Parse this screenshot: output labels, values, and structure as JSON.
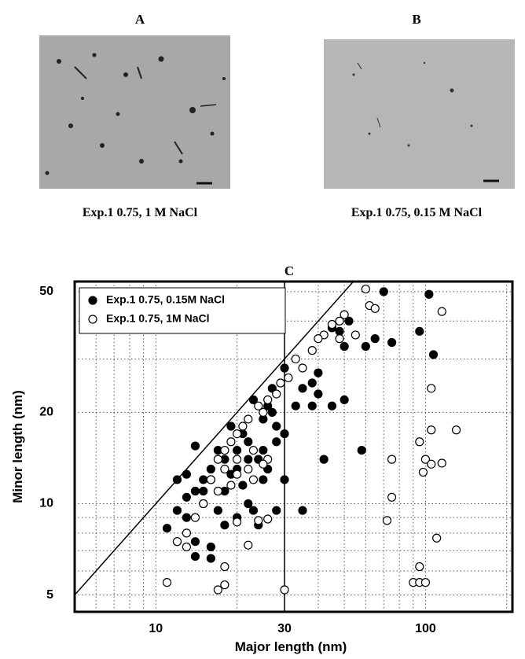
{
  "panels": [
    {
      "label": "A",
      "caption": "Exp.1 0.75, 1 M NaCl"
    },
    {
      "label": "B",
      "caption": "Exp.1 0.75, 0.15 M NaCl"
    }
  ],
  "chart_data": {
    "type": "scatter",
    "title": "C",
    "x_label": "Major length (nm)",
    "y_label": "Minor length (nm)",
    "xlog": true,
    "ylog": true,
    "xlim": [
      5,
      210
    ],
    "ylim": [
      4.4,
      54
    ],
    "xticks": [
      10,
      30,
      100
    ],
    "yticks": [
      5,
      10,
      20,
      50
    ],
    "xgrid": [
      6,
      7,
      8,
      9,
      10,
      20,
      30,
      40,
      50,
      60,
      70,
      80,
      90,
      100,
      200
    ],
    "ygrid": [
      5,
      6,
      7,
      8,
      9,
      10,
      20,
      30,
      40,
      50
    ],
    "grid": true,
    "diagonal": true,
    "vline": 30,
    "legend": "upper left",
    "series": [
      {
        "name": "Exp.1 0.75, 0.15M NaCl",
        "color": "#000000",
        "marker": "filled",
        "x": [
          70,
          103,
          95,
          107,
          75,
          60,
          65,
          50,
          48,
          45,
          52,
          40,
          38,
          35,
          40,
          33,
          45,
          50,
          38,
          30,
          35,
          42,
          58,
          30,
          28,
          27,
          25,
          22,
          20,
          18,
          16,
          15,
          14,
          13,
          12,
          12,
          11,
          13,
          15,
          17,
          16,
          14,
          12,
          14,
          16,
          22,
          24,
          28,
          26,
          24,
          21,
          23,
          27,
          26,
          19,
          17,
          20,
          15,
          18,
          14,
          21,
          25,
          20,
          23,
          18,
          13,
          16,
          19,
          22,
          25,
          28,
          30
        ],
        "values": [
          50,
          49,
          37,
          31,
          34,
          33,
          35,
          33,
          37,
          38,
          40,
          27,
          25,
          24,
          23,
          21,
          21,
          22,
          21,
          12,
          9.5,
          14,
          15,
          17,
          16,
          20,
          19,
          16,
          15,
          14,
          13,
          12,
          11,
          12.5,
          12,
          9.5,
          8.3,
          9,
          10,
          9.5,
          7.2,
          7.5,
          7.5,
          6.7,
          6.6,
          10,
          8.5,
          9.5,
          13,
          14,
          17,
          22,
          24,
          21,
          18,
          15,
          13,
          11,
          11,
          15.5,
          11.5,
          12,
          9,
          9.5,
          8.5,
          10.5,
          12,
          12.5,
          14,
          15,
          18,
          28
        ]
      },
      {
        "name": "Exp.1 0.75, 1M NaCl",
        "color": "#000000",
        "marker": "open",
        "x": [
          60,
          62,
          65,
          115,
          50,
          48,
          45,
          42,
          40,
          48,
          55,
          38,
          33,
          35,
          31,
          29,
          28,
          26,
          25,
          24,
          22,
          21,
          20,
          19,
          18,
          17,
          16,
          17,
          18,
          19,
          20,
          22,
          23,
          26,
          25,
          23,
          20,
          15,
          14,
          13,
          12,
          13,
          20,
          22,
          24,
          26,
          18,
          17,
          18,
          11,
          30,
          75,
          75,
          72,
          95,
          100,
          105,
          115,
          130,
          105,
          98,
          105,
          110,
          95,
          90,
          95,
          100
        ],
        "values": [
          51,
          45,
          44,
          43,
          42,
          40,
          39,
          36,
          35,
          35,
          36,
          32,
          30,
          28,
          26,
          25,
          23,
          22,
          20,
          21,
          19,
          18,
          17,
          16,
          15,
          14,
          12,
          11,
          13,
          11.5,
          12.5,
          13,
          15,
          14,
          13.5,
          12,
          14,
          10,
          9,
          8,
          7.5,
          7.2,
          8.7,
          7.3,
          8.8,
          8.9,
          6.2,
          5.2,
          5.4,
          5.5,
          5.2,
          14,
          10.5,
          8.8,
          16,
          14,
          13.5,
          13.6,
          17.5,
          17.5,
          12.7,
          24,
          7.7,
          6.2,
          5.5,
          5.5,
          5.5
        ]
      }
    ]
  }
}
